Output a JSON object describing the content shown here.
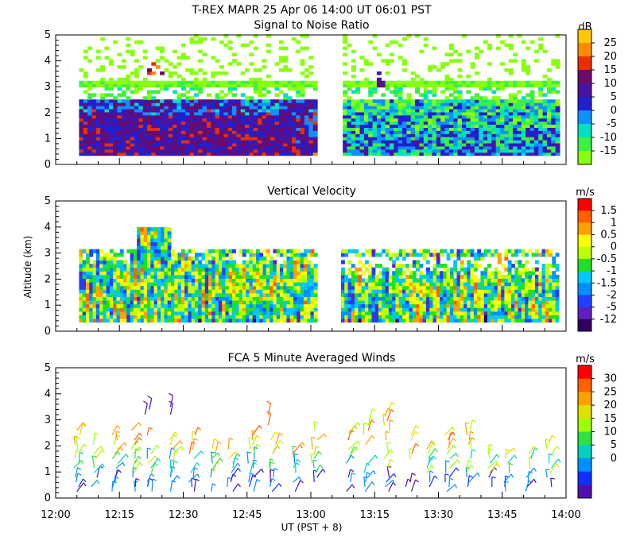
{
  "title": "T-REX  MAPR 25 Apr 06  14:00 UT  06:01  PST",
  "xlabel": "UT  (PST + 8)",
  "x_ticks": [
    "12:00",
    "12:15",
    "12:30",
    "12:45",
    "13:00",
    "13:15",
    "13:30",
    "13:45",
    "14:00"
  ],
  "y_ticks": [
    "0",
    "1",
    "2",
    "3",
    "4",
    "5"
  ],
  "chart_data": [
    {
      "type": "heatmap",
      "title": "Signal to Noise Ratio",
      "ylabel": "",
      "xlim": [
        0,
        120
      ],
      "ylim": [
        0,
        5
      ],
      "data_gap_minutes": [
        61,
        67
      ],
      "colorbar": {
        "unit": "dB",
        "labels": [
          "25",
          "20",
          "15",
          "10",
          "5",
          "0",
          "-5",
          "-10",
          "-15"
        ],
        "colors": [
          "#ffc800",
          "#ff8c00",
          "#e83000",
          "#6a0a6a",
          "#4a12a0",
          "#2020d0",
          "#1090ff",
          "#00e0c0",
          "#40f040",
          "#88ff10"
        ]
      }
    },
    {
      "type": "heatmap",
      "title": "Vertical Velocity",
      "ylabel": "Altitude (km)",
      "xlim": [
        0,
        120
      ],
      "ylim": [
        0,
        5
      ],
      "data_gap_minutes": [
        61,
        67
      ],
      "colorbar": {
        "unit": "m/s",
        "labels": [
          "1.5",
          "1",
          "0.5",
          "0",
          "-0.5",
          "-1",
          "-1.5",
          "-2",
          "-5",
          "-12"
        ],
        "colors": [
          "#ff0000",
          "#ff6000",
          "#ffa000",
          "#ffff00",
          "#c0ff00",
          "#20e020",
          "#00c8ff",
          "#0090ff",
          "#2040ff",
          "#6020c0",
          "#300060"
        ]
      }
    },
    {
      "type": "scatter",
      "title": "FCA 5 Minute Averaged Winds",
      "ylabel": "",
      "xlim": [
        0,
        120
      ],
      "ylim": [
        0,
        5
      ],
      "colorbar": {
        "unit": "m/s",
        "labels": [
          "30",
          "25",
          "20",
          "15",
          "10",
          "5",
          "0"
        ],
        "colors": [
          "#ff0000",
          "#ff6000",
          "#ffa000",
          "#e0e000",
          "#a0ff00",
          "#30e040",
          "#00d0c0",
          "#0090ff",
          "#1030ff",
          "#5010b0"
        ]
      }
    }
  ]
}
